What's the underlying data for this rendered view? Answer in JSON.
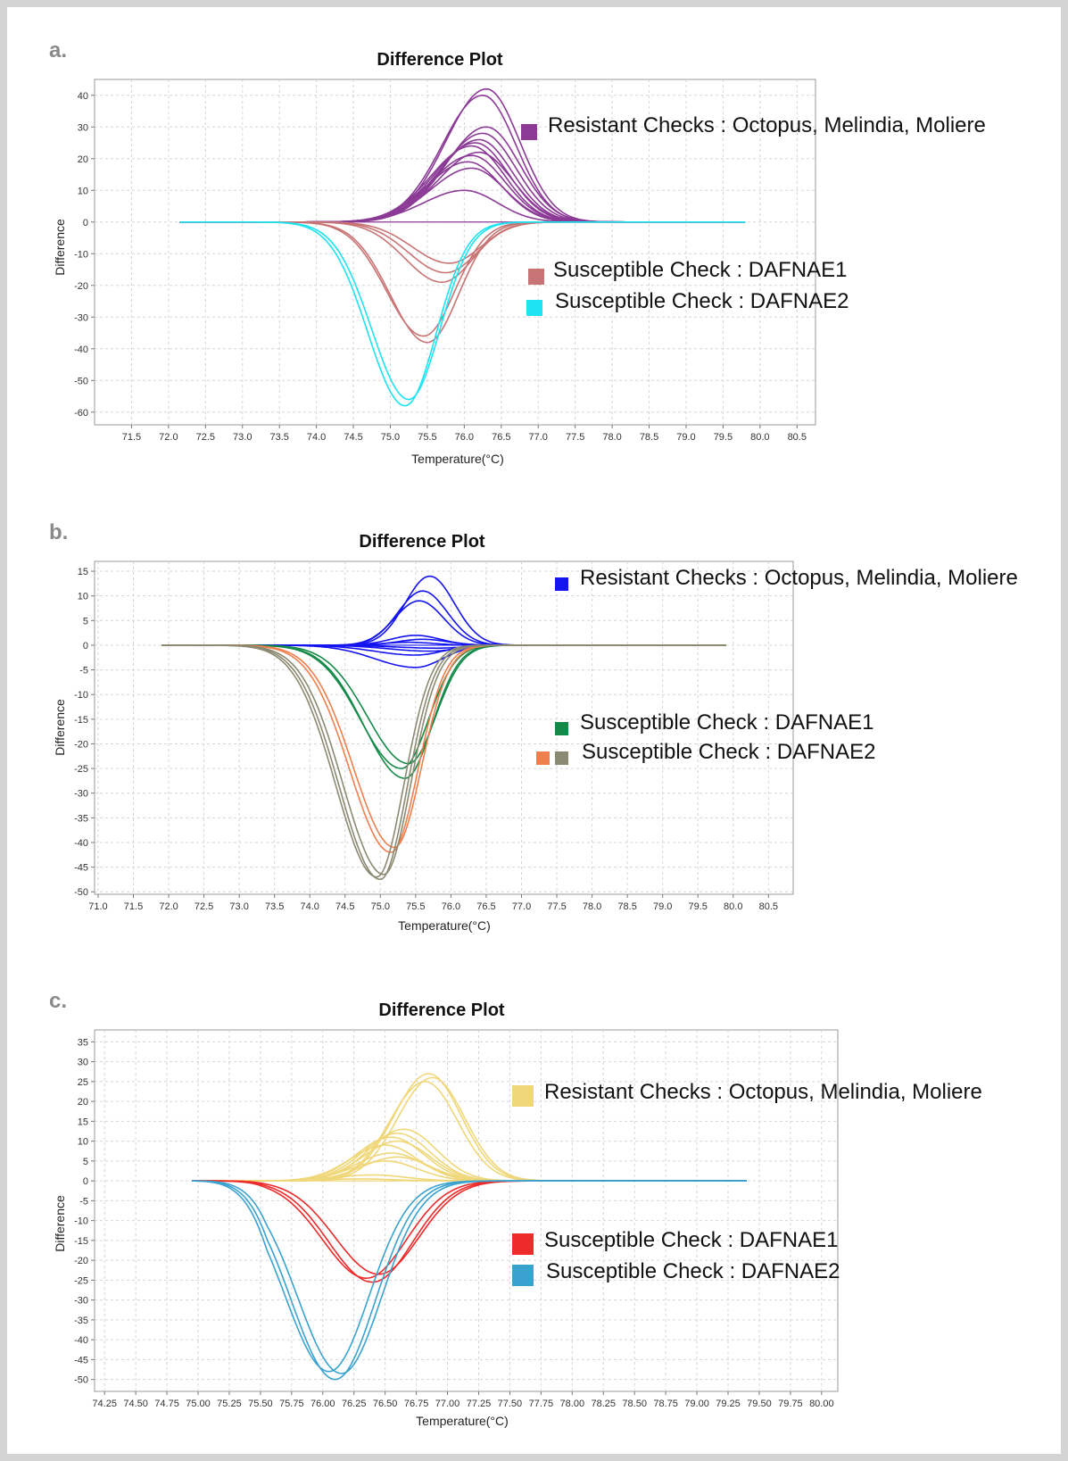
{
  "chart_data": [
    {
      "panel": "a.",
      "type": "line",
      "title": "Difference Plot",
      "xlabel": "Temperature(°C)",
      "ylabel": "Difference",
      "xlim": [
        71.0,
        80.75
      ],
      "ylim": [
        -64,
        45
      ],
      "xticks": [
        71.5,
        72.0,
        72.5,
        73.0,
        73.5,
        74.0,
        74.5,
        75.0,
        75.5,
        76.0,
        76.5,
        77.0,
        77.5,
        78.0,
        78.5,
        79.0,
        79.5,
        80.0,
        80.5
      ],
      "xtick_labels": [
        "71.5",
        "72.0",
        "72.5",
        "73.0",
        "73.5",
        "74.0",
        "74.5",
        "75.0",
        "75.5",
        "76.0",
        "76.5",
        "77.0",
        "77.5",
        "78.0",
        "78.5",
        "79.0",
        "79.5",
        "80.0",
        "80.5"
      ],
      "yticks": [
        -60,
        -50,
        -40,
        -30,
        -20,
        -10,
        0,
        10,
        20,
        30,
        40
      ],
      "grid": true,
      "legend": [
        {
          "label": "Resistant Checks : Octopus, Melindia, Moliere",
          "color": "#8b3a96"
        },
        {
          "label": "Susceptible Check :  DAFNAE1",
          "color": "#c87474"
        },
        {
          "label": "Susceptible Check :  DAFNAE2",
          "color": "#1ee3f0"
        }
      ],
      "series": [
        {
          "group": 0,
          "color": "#8b3a96",
          "peaks": [
            {
              "x": 76.3,
              "y": 42
            },
            {
              "x": 76.25,
              "y": 40
            },
            {
              "x": 76.3,
              "y": 30
            },
            {
              "x": 76.25,
              "y": 28
            },
            {
              "x": 76.2,
              "y": 26
            },
            {
              "x": 76.15,
              "y": 25
            },
            {
              "x": 76.1,
              "y": 24
            },
            {
              "x": 76.2,
              "y": 22
            },
            {
              "x": 76.1,
              "y": 21
            },
            {
              "x": 76.05,
              "y": 19
            },
            {
              "x": 76.1,
              "y": 17
            },
            {
              "x": 76.0,
              "y": 10
            }
          ]
        },
        {
          "group": 1,
          "color": "#c87474",
          "peaks": [
            {
              "x": 75.5,
              "y": -38
            },
            {
              "x": 75.45,
              "y": -36
            },
            {
              "x": 75.7,
              "y": -19
            },
            {
              "x": 75.75,
              "y": -16
            },
            {
              "x": 75.8,
              "y": -13
            }
          ]
        },
        {
          "group": 2,
          "color": "#1ee3f0",
          "peaks": [
            {
              "x": 75.2,
              "y": -58
            },
            {
              "x": 75.25,
              "y": -56
            }
          ]
        }
      ]
    },
    {
      "panel": "b.",
      "type": "line",
      "title": "Difference Plot",
      "xlabel": "Temperature(°C)",
      "ylabel": "Difference",
      "xlim": [
        70.95,
        80.85
      ],
      "ylim": [
        -50.5,
        17
      ],
      "xticks": [
        71.0,
        71.5,
        72.0,
        72.5,
        73.0,
        73.5,
        74.0,
        74.5,
        75.0,
        75.5,
        76.0,
        76.5,
        77.0,
        77.5,
        78.0,
        78.5,
        79.0,
        79.5,
        80.0,
        80.5
      ],
      "xtick_labels": [
        "71.0",
        "71.5",
        "72.0",
        "72.5",
        "73.0",
        "73.5",
        "74.0",
        "74.5",
        "75.0",
        "75.5",
        "76.0",
        "76.5",
        "77.0",
        "77.5",
        "78.0",
        "78.5",
        "79.0",
        "79.5",
        "80.0",
        "80.5"
      ],
      "yticks": [
        -50,
        -45,
        -40,
        -35,
        -30,
        -25,
        -20,
        -15,
        -10,
        -5,
        0,
        5,
        10,
        15
      ],
      "grid": true,
      "legend": [
        {
          "label": "Resistant Checks : Octopus, Melindia, Moliere",
          "color": "#1414f0"
        },
        {
          "label": "Susceptible Check : DAFNAE1",
          "color": "#158a48"
        },
        {
          "label": "Susceptible Check : DAFNAE2",
          "color": "#f07f4e",
          "color2": "#8a8a72"
        }
      ],
      "series": [
        {
          "group": 0,
          "color": "#1414f0",
          "peaks": [
            {
              "x": 75.7,
              "y": 14
            },
            {
              "x": 75.6,
              "y": 11
            },
            {
              "x": 75.55,
              "y": 9
            },
            {
              "x": 75.5,
              "y": 2
            },
            {
              "x": 75.6,
              "y": 1.2
            },
            {
              "x": 75.4,
              "y": 0.6
            },
            {
              "x": 75.8,
              "y": -0.6
            },
            {
              "x": 75.7,
              "y": -1.2
            },
            {
              "x": 75.5,
              "y": -2
            },
            {
              "x": 75.5,
              "y": -4.5
            }
          ]
        },
        {
          "group": 1,
          "color": "#158a48",
          "peaks": [
            {
              "x": 75.35,
              "y": -27
            },
            {
              "x": 75.3,
              "y": -25
            },
            {
              "x": 75.4,
              "y": -24
            }
          ]
        },
        {
          "group": 2,
          "color": "#f07f4e",
          "peaks": [
            {
              "x": 75.15,
              "y": -42
            },
            {
              "x": 75.2,
              "y": -41
            }
          ]
        },
        {
          "group": 2,
          "color": "#8a8a72",
          "peaks": [
            {
              "x": 75.0,
              "y": -47.5
            },
            {
              "x": 74.95,
              "y": -47
            },
            {
              "x": 75.05,
              "y": -46.5
            }
          ]
        }
      ]
    },
    {
      "panel": "c.",
      "type": "line",
      "title": "Difference Plot",
      "xlabel": "Temperature(°C)",
      "ylabel": "Difference",
      "xlim": [
        74.17,
        80.13
      ],
      "ylim": [
        -53,
        38
      ],
      "xticks": [
        74.25,
        74.5,
        74.75,
        75.0,
        75.25,
        75.5,
        75.75,
        76.0,
        76.25,
        76.5,
        76.75,
        77.0,
        77.25,
        77.5,
        77.75,
        78.0,
        78.25,
        78.5,
        78.75,
        79.0,
        79.25,
        79.5,
        79.75,
        80.0
      ],
      "xtick_labels": [
        "74.25",
        "74.50",
        "74.75",
        "75.00",
        "75.25",
        "75.50",
        "75.75",
        "76.00",
        "76.25",
        "76.50",
        "76.75",
        "77.00",
        "77.25",
        "77.50",
        "77.75",
        "78.00",
        "78.25",
        "78.50",
        "78.75",
        "79.00",
        "79.25",
        "79.50",
        "79.75",
        "80.00"
      ],
      "yticks": [
        -50,
        -45,
        -40,
        -35,
        -30,
        -25,
        -20,
        -15,
        -10,
        -5,
        0,
        5,
        10,
        15,
        20,
        25,
        30,
        35
      ],
      "grid": true,
      "legend": [
        {
          "label": "Resistant Checks : Octopus, Melindia, Moliere",
          "color": "#efd77a"
        },
        {
          "label": "Susceptible Check :  DAFNAE1",
          "color": "#ee2a2a"
        },
        {
          "label": "Susceptible Check : DAFNAE2",
          "color": "#3aa2cf"
        }
      ],
      "series": [
        {
          "group": 0,
          "color": "#efd77a",
          "peaks": [
            {
              "x": 76.85,
              "y": 27
            },
            {
              "x": 76.88,
              "y": 26
            },
            {
              "x": 76.82,
              "y": 25
            },
            {
              "x": 76.65,
              "y": 13
            },
            {
              "x": 76.6,
              "y": 12
            },
            {
              "x": 76.55,
              "y": 11
            },
            {
              "x": 76.6,
              "y": 10
            },
            {
              "x": 76.5,
              "y": 9
            },
            {
              "x": 76.55,
              "y": 7
            },
            {
              "x": 76.6,
              "y": 6
            },
            {
              "x": 76.5,
              "y": 5
            },
            {
              "x": 76.4,
              "y": 1.5
            },
            {
              "x": 76.3,
              "y": 0.5
            }
          ]
        },
        {
          "group": 1,
          "color": "#ee2a2a",
          "peaks": [
            {
              "x": 76.4,
              "y": -25.5
            },
            {
              "x": 76.35,
              "y": -24.5
            },
            {
              "x": 76.45,
              "y": -23.5
            }
          ]
        },
        {
          "group": 2,
          "color": "#3aa2cf",
          "peaks": [
            {
              "x": 76.1,
              "y": -50
            },
            {
              "x": 76.15,
              "y": -48.5
            },
            {
              "x": 76.05,
              "y": -48
            }
          ]
        }
      ]
    }
  ]
}
